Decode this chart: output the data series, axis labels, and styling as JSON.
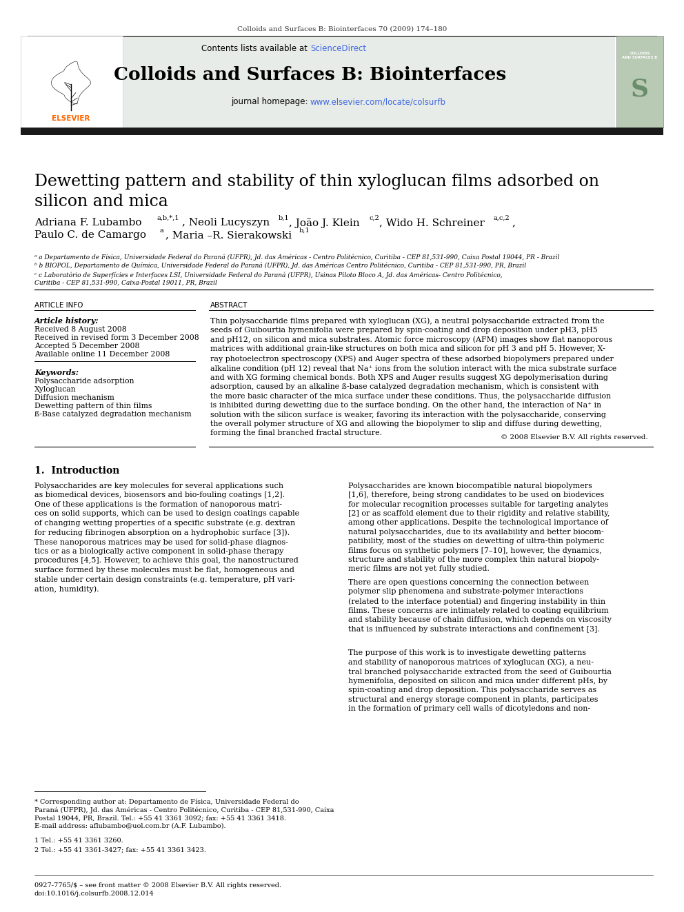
{
  "page_bg": "#ffffff",
  "header_journal_text": "Colloids and Surfaces B: Biointerfaces 70 (2009) 174–180",
  "header_journal_color": "#000000",
  "journal_header_bg": "#e8ece8",
  "journal_name": "Colloids and Surfaces B: Biointerfaces",
  "contents_text": "Contents lists available at ",
  "science_direct": "ScienceDirect",
  "science_direct_color": "#4169e1",
  "journal_homepage_text": "journal homepage: ",
  "journal_url": "www.elsevier.com/locate/colsurfb",
  "journal_url_color": "#4169e1",
  "dark_bar_color": "#1a1a1a",
  "title": "Dewetting pattern and stability of thin xyloglucan films adsorbed on\nsilicon and mica",
  "affil_a": "a Departamento de Física, Universidade Federal do Paraná (UFPR), Jd. das Américas - Centro Politécnico, Curitiba - CEP 81,531-990, Caixa Postal 19044, PR - Brazil",
  "affil_b": "b BIOPOL, Departamento de Química, Universidade Federal do Paraná (UFPR), Jd. das Américas Centro Politécnico, Curitiba - CEP 81,531-990, PR, Brazil",
  "affil_c": "c Laboratório de Superfícies e Interfaces LSI, Universidade Federal do Paraná (UFPR), Usinas Piloto Bloco A, Jd. das Américas- Centro Politécnico,\nCuritiba - CEP 81,531-990, Caixa-Postal 19011, PR, Brazil",
  "article_info_title": "ARTICLE INFO",
  "abstract_title": "ABSTRACT",
  "article_history_label": "Article history:",
  "received": "Received 8 August 2008",
  "received_revised": "Received in revised form 3 December 2008",
  "accepted": "Accepted 5 December 2008",
  "available": "Available online 11 December 2008",
  "keywords_label": "Keywords:",
  "keyword1": "Polysaccharide adsorption",
  "keyword2": "Xyloglucan",
  "keyword3": "Diffusion mechanism",
  "keyword4": "Dewetting pattern of thin films",
  "keyword5": "ß-Base catalyzed degradation mechanism",
  "abstract_text": "Thin polysaccharide films prepared with xyloglucan (XG), a neutral polysaccharide extracted from the\nseeds of Guibourtia hymenifolia were prepared by spin-coating and drop deposition under pH3, pH5\nand pH12, on silicon and mica substrates. Atomic force microscopy (AFM) images show flat nanoporous\nmatrices with additional grain-like structures on both mica and silicon for pH 3 and pH 5. However, X-\nray photoelectron spectroscopy (XPS) and Auger spectra of these adsorbed biopolymers prepared under\nalkaline condition (pH 12) reveal that Na⁺ ions from the solution interact with the mica substrate surface\nand with XG forming chemical bonds. Both XPS and Auger results suggest XG depolymerisation during\nadsorption, caused by an alkaline ß-base catalyzed degradation mechanism, which is consistent with\nthe more basic character of the mica surface under these conditions. Thus, the polysaccharide diffusion\nis inhibited during dewetting due to the surface bonding. On the other hand, the interaction of Na⁺ in\nsolution with the silicon surface is weaker, favoring its interaction with the polysaccharide, conserving\nthe overall polymer structure of XG and allowing the biopolymer to slip and diffuse during dewetting,\nforming the final branched fractal structure.",
  "copyright": "© 2008 Elsevier B.V. All rights reserved.",
  "intro_heading": "1.  Introduction",
  "intro_col1": "Polysaccharides are key molecules for several applications such\nas biomedical devices, biosensors and bio-fouling coatings [1,2].\nOne of these applications is the formation of nanoporous matri-\nces on solid supports, which can be used to design coatings capable\nof changing wetting properties of a specific substrate (e.g. dextran\nfor reducing fibrinogen absorption on a hydrophobic surface [3]).\nThese nanoporous matrices may be used for solid-phase diagnos-\ntics or as a biologically active component in solid-phase therapy\nprocedures [4,5]. However, to achieve this goal, the nanostructured\nsurface formed by these molecules must be flat, homogeneous and\nstable under certain design constraints (e.g. temperature, pH vari-\nation, humidity).",
  "intro_col2": "Polysaccharides are known biocompatible natural biopolymers\n[1,6], therefore, being strong candidates to be used on biodevices\nfor molecular recognition processes suitable for targeting analytes\n[2] or as scaffold element due to their rigidity and relative stability,\namong other applications. Despite the technological importance of\nnatural polysaccharides, due to its availability and better biocom-\npatibility, most of the studies on dewetting of ultra-thin polymeric\nfilms focus on synthetic polymers [7–10], however, the dynamics,\nstructure and stability of the more complex thin natural biopoly-\nmeric films are not yet fully studied.",
  "intro_col2_cont": "There are open questions concerning the connection between\npolymer slip phenomena and substrate-polymer interactions\n(related to the interface potential) and fingering instability in thin\nfilms. These concerns are intimately related to coating equilibrium\nand stability because of chain diffusion, which depends on viscosity\nthat is influenced by substrate interactions and confinement [3].",
  "intro_col2_cont2": "The purpose of this work is to investigate dewetting patterns\nand stability of nanoporous matrices of xyloglucan (XG), a neu-\ntral branched polysaccharide extracted from the seed of Guibourtia\nhymenifolia, deposited on silicon and mica under different pHs, by\nspin-coating and drop deposition. This polysaccharide serves as\nstructural and energy storage component in plants, participates\nin the formation of primary cell walls of dicotyledons and non-",
  "footnote_corr": "* Corresponding author at: Departamento de Física, Universidade Federal do\nParaná (UFPR), Jd. das Américas - Centro Politécnico, Curitiba - CEP 81,531-990, Caixa\nPostal 19044, PR, Brazil. Tel.: +55 41 3361 3092; fax: +55 41 3361 3418.\nE-mail address: aflubambo@uol.com.br (A.F. Lubambo).",
  "footnote1": "1 Tel.: +55 41 3361 3260.",
  "footnote2": "2 Tel.: +55 41 3361-3427; fax: +55 41 3361 3423.",
  "footer_text": "0927-7765/$ – see front matter © 2008 Elsevier B.V. All rights reserved.\ndoi:10.1016/j.colsurfb.2008.12.014"
}
